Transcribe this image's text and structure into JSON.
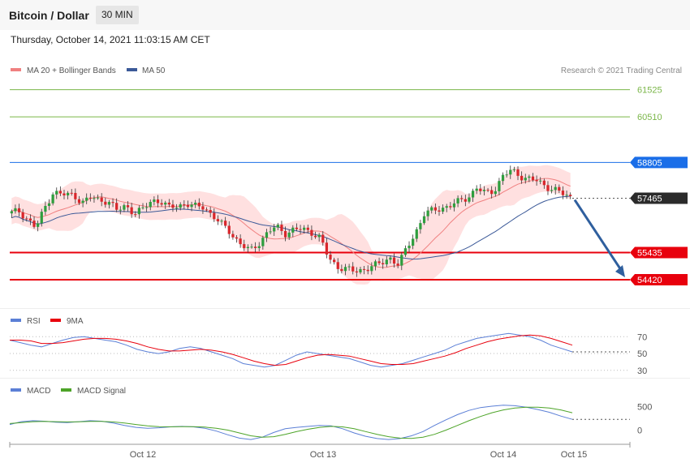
{
  "header": {
    "title": "Bitcoin / Dollar",
    "timeframe": "30 MIN",
    "datetime": "Thursday, October 14, 2021 11:03:15 AM CET"
  },
  "colors": {
    "ma20": "#f08080",
    "bands_fill": "#ffd6d6",
    "ma50": "#3b5998",
    "green_level": "#7ab648",
    "blue_level": "#1a6ee8",
    "red_level": "#e8000d",
    "current": "#2b2b2b",
    "arrow": "#2f5f9e",
    "candle_up": "#2e9e3e",
    "candle_down": "#d9262b",
    "rsi": "#5b7fd6",
    "rsi_ma": "#e8000d",
    "macd": "#5b7fd6",
    "macd_signal": "#4da428"
  },
  "chart_data": [
    {
      "type": "candlestick",
      "legend": [
        {
          "label": "MA 20 + Bollinger Bands",
          "color": "#f08080"
        },
        {
          "label": "MA 50",
          "color": "#3b5998"
        }
      ],
      "watermark": "Research © 2021 Trading Central",
      "x_ticks": [
        "Oct 12",
        "Oct 13",
        "Oct 14",
        "Oct 15"
      ],
      "ylim": [
        53600,
        62000
      ],
      "levels": [
        {
          "value": 61525,
          "label": "61525",
          "kind": "resistance-far"
        },
        {
          "value": 60510,
          "label": "60510",
          "kind": "resistance-far"
        },
        {
          "value": 58805,
          "label": "58805",
          "kind": "resistance"
        },
        {
          "value": 57465,
          "label": "57465",
          "kind": "current"
        },
        {
          "value": 55435,
          "label": "55435",
          "kind": "support"
        },
        {
          "value": 54420,
          "label": "54420",
          "kind": "support"
        }
      ],
      "price_path": [
        [
          0,
          56900
        ],
        [
          0.03,
          57000
        ],
        [
          0.06,
          56700
        ],
        [
          0.09,
          56350
        ],
        [
          0.12,
          57100
        ],
        [
          0.15,
          57700
        ],
        [
          0.18,
          57600
        ],
        [
          0.22,
          57600
        ],
        [
          0.25,
          57300
        ],
        [
          0.28,
          57500
        ],
        [
          0.31,
          57400
        ],
        [
          0.34,
          57350
        ],
        [
          0.37,
          57000
        ],
        [
          0.4,
          57200
        ],
        [
          0.43,
          56900
        ],
        [
          0.46,
          57050
        ],
        [
          0.49,
          57400
        ],
        [
          0.52,
          57350
        ],
        [
          0.55,
          57100
        ],
        [
          0.58,
          57200
        ],
        [
          0.61,
          57250
        ],
        [
          0.64,
          57150
        ],
        [
          0.67,
          57150
        ],
        [
          0.7,
          56800
        ],
        [
          0.73,
          56500
        ],
        [
          0.76,
          56200
        ],
        [
          0.8,
          55700
        ],
        [
          0.83,
          55500
        ],
        [
          0.86,
          55800
        ],
        [
          0.89,
          56200
        ],
        [
          0.92,
          56400
        ],
        [
          0.95,
          56150
        ],
        [
          0.98,
          56300
        ],
        [
          1.01,
          56300
        ],
        [
          1.04,
          56200
        ],
        [
          1.07,
          56000
        ],
        [
          1.1,
          55200
        ],
        [
          1.13,
          54900
        ],
        [
          1.16,
          54850
        ],
        [
          1.19,
          54700
        ],
        [
          1.22,
          54800
        ],
        [
          1.25,
          54950
        ],
        [
          1.28,
          55000
        ],
        [
          1.31,
          55250
        ],
        [
          1.34,
          55000
        ],
        [
          1.37,
          55600
        ],
        [
          1.4,
          56200
        ],
        [
          1.43,
          56900
        ],
        [
          1.46,
          57000
        ],
        [
          1.49,
          57100
        ],
        [
          1.52,
          57200
        ],
        [
          1.55,
          57350
        ],
        [
          1.58,
          57500
        ],
        [
          1.61,
          57850
        ],
        [
          1.64,
          57650
        ],
        [
          1.67,
          57750
        ],
        [
          1.7,
          58300
        ],
        [
          1.73,
          58500
        ],
        [
          1.76,
          58300
        ],
        [
          1.79,
          58200
        ],
        [
          1.82,
          58100
        ],
        [
          1.85,
          57900
        ],
        [
          1.88,
          57800
        ],
        [
          1.91,
          57600
        ],
        [
          1.94,
          57465
        ]
      ],
      "x_range": [
        0,
        1.94
      ]
    },
    {
      "type": "line",
      "legend": [
        {
          "label": "RSI",
          "color": "#5b7fd6"
        },
        {
          "label": "9MA",
          "color": "#e8000d"
        }
      ],
      "y_ticks": [
        70,
        50,
        30
      ],
      "ylim": [
        25,
        78
      ],
      "series": [
        {
          "name": "RSI",
          "values": [
            66,
            63,
            60,
            58,
            62,
            66,
            69,
            70,
            68,
            66,
            64,
            60,
            55,
            52,
            50,
            52,
            56,
            58,
            56,
            52,
            48,
            44,
            38,
            36,
            34,
            36,
            42,
            48,
            52,
            50,
            48,
            46,
            44,
            40,
            36,
            34,
            36,
            38,
            42,
            46,
            50,
            54,
            60,
            64,
            68,
            70,
            72,
            74,
            72,
            70,
            66,
            60,
            56,
            52
          ]
        },
        {
          "name": "9MA",
          "values": [
            66,
            66,
            65,
            62,
            62,
            63,
            65,
            67,
            68,
            68,
            67,
            65,
            62,
            58,
            55,
            53,
            53,
            54,
            55,
            54,
            52,
            49,
            45,
            41,
            38,
            36,
            37,
            41,
            45,
            48,
            49,
            48,
            47,
            44,
            41,
            38,
            37,
            37,
            38,
            41,
            44,
            47,
            51,
            56,
            60,
            64,
            67,
            69,
            71,
            72,
            71,
            68,
            64,
            60
          ]
        }
      ]
    },
    {
      "type": "line",
      "legend": [
        {
          "label": "MACD",
          "color": "#5b7fd6"
        },
        {
          "label": "MACD Signal",
          "color": "#4da428"
        }
      ],
      "y_ticks": [
        500,
        0
      ],
      "ylim": [
        -250,
        700
      ],
      "series": [
        {
          "name": "MACD",
          "values": [
            120,
            180,
            200,
            190,
            170,
            160,
            180,
            200,
            190,
            150,
            100,
            60,
            40,
            50,
            70,
            80,
            70,
            40,
            -20,
            -100,
            -170,
            -200,
            -150,
            -50,
            30,
            60,
            80,
            100,
            90,
            30,
            -60,
            -130,
            -180,
            -200,
            -180,
            -120,
            -30,
            100,
            220,
            330,
            420,
            480,
            510,
            530,
            520,
            490,
            440,
            380,
            300,
            230
          ]
        },
        {
          "name": "MACD Signal",
          "values": [
            140,
            160,
            180,
            185,
            180,
            175,
            178,
            185,
            186,
            175,
            150,
            120,
            90,
            75,
            72,
            75,
            75,
            65,
            40,
            0,
            -60,
            -120,
            -150,
            -140,
            -90,
            -30,
            20,
            60,
            80,
            70,
            30,
            -30,
            -90,
            -140,
            -170,
            -175,
            -150,
            -90,
            0,
            100,
            200,
            290,
            370,
            430,
            470,
            490,
            490,
            470,
            430,
            370
          ]
        }
      ]
    }
  ]
}
